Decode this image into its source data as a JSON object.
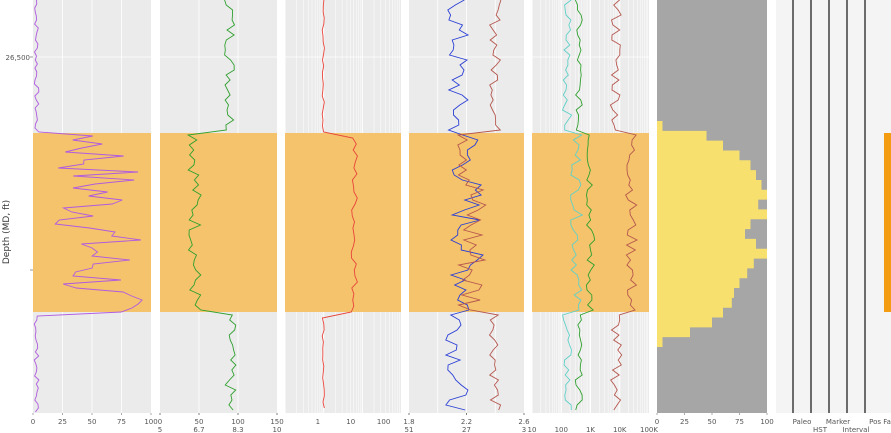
{
  "y_axis": {
    "title": "Depth (MD, ft)",
    "tick_label": "26,500"
  },
  "blue_caption": "",
  "zone": {
    "name": "highlight",
    "color": "#f5c36b"
  },
  "colors": {
    "panel_bg": "#ebebeb",
    "grid": "#ffffff",
    "gray_fill": "#a6a6a6",
    "yellow_fill": "#f7e06e",
    "purple": "#b05be0",
    "green": "#2fa02f",
    "red": "#e8443a",
    "blue": "#2a3fd6",
    "brown": "#b5574f",
    "cyan": "#5fd1c8",
    "orange_accent": "#f39c12"
  },
  "chart_data": [
    {
      "type": "line",
      "panel": "gamma-ray",
      "series": [
        {
          "color": "#b05be0",
          "style": "spiky"
        }
      ],
      "x_ticks": [
        "0",
        "25",
        "50",
        "75",
        "100"
      ],
      "xlim": [
        0,
        100
      ]
    },
    {
      "type": "line",
      "panel": "sp",
      "series": [
        {
          "color": "#2fa02f",
          "style": "wiggle"
        }
      ],
      "x_ticks": [
        "0",
        "50",
        "100",
        "150"
      ],
      "x_ticks_secondary": [
        "5",
        "6.7",
        "8.3",
        "10"
      ],
      "xlim": [
        0,
        150
      ]
    },
    {
      "type": "line",
      "panel": "resistivity",
      "scale": "log",
      "series": [
        {
          "color": "#e8443a",
          "style": "smooth"
        }
      ],
      "x_ticks": [
        "1",
        "10",
        "100"
      ],
      "xlim": [
        0.1,
        100
      ]
    },
    {
      "type": "line",
      "panel": "density-porosity",
      "series": [
        {
          "color": "#2a3fd6",
          "style": "spiky"
        },
        {
          "color": "#b5574f",
          "style": "wiggle"
        }
      ],
      "x_ticks": [
        "1.8",
        "2.2",
        "2.6"
      ],
      "x_ticks_secondary": [
        "51",
        "27",
        "3"
      ],
      "xlim": [
        1.8,
        2.6
      ]
    },
    {
      "type": "line",
      "panel": "multi-log",
      "scale": "log",
      "series": [
        {
          "color": "#5fd1c8",
          "style": "wiggle"
        },
        {
          "color": "#2fa02f",
          "style": "wiggle"
        },
        {
          "color": "#b5574f",
          "style": "wiggle"
        }
      ],
      "x_ticks": [
        "10",
        "100",
        "1K",
        "10K",
        "100K"
      ]
    },
    {
      "type": "area",
      "panel": "fraction",
      "x_ticks": [
        "0",
        "25",
        "50",
        "75",
        "100"
      ],
      "xlim": [
        0,
        100
      ]
    },
    {
      "type": "table",
      "panel": "markers",
      "labels": [
        "Paleo",
        "Marker",
        "Pos Fa"
      ],
      "sub_labels": [
        "HST",
        "Interval"
      ]
    }
  ]
}
